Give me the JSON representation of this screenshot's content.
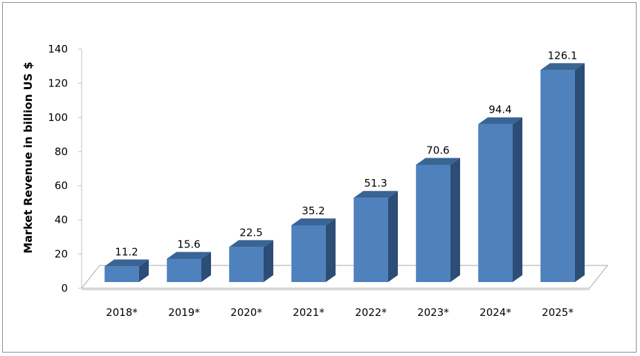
{
  "chart_data": {
    "type": "bar",
    "categories": [
      "2018*",
      "2019*",
      "2020*",
      "2021*",
      "2022*",
      "2023*",
      "2024*",
      "2025*"
    ],
    "values": [
      11.2,
      15.6,
      22.5,
      35.2,
      51.3,
      70.6,
      94.4,
      126.1
    ],
    "data_labels": [
      "11.2",
      "15.6",
      "22.5",
      "35.2",
      "51.3",
      "70.6",
      "94.4",
      "126.1"
    ],
    "title": "",
    "xlabel": "",
    "ylabel": "Market Revenue in billion US $",
    "ylim": [
      0,
      140
    ],
    "yticks": [
      0,
      20,
      40,
      60,
      80,
      100,
      120,
      140
    ],
    "grid": false,
    "legend": "none",
    "style": "3d-column",
    "colors": {
      "bar_front": "#4f81bd",
      "bar_side": "#2c4d75",
      "bar_top": "#3a6494",
      "floor": "#ffffff",
      "floor_edge": "#a6a6a6",
      "frame": "#8c8c8c"
    }
  }
}
